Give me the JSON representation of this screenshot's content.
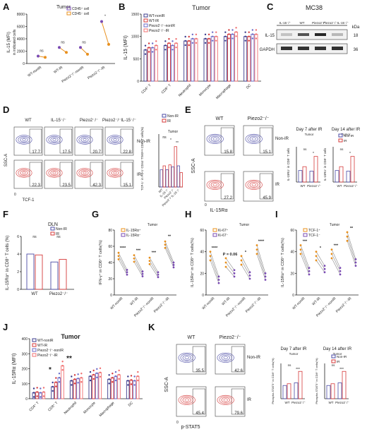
{
  "panels": {
    "A": {
      "label": "A",
      "title": "Tumor",
      "ylabel": "IL-15 (MFI)",
      "ylabel2": "in indicated cells",
      "legend": [
        "CD45⁺ cell",
        "CD45⁻ cell"
      ],
      "categories": [
        "WT-nonIR",
        "WT-IR",
        "Piezo2⁻/⁻-nonIR",
        "Piezo2⁻/⁻-IR"
      ],
      "sig": [
        "ns",
        "ns",
        "ns",
        "*"
      ],
      "yticks": [
        "0",
        "2000",
        "4000",
        "6000",
        "8000"
      ]
    },
    "B": {
      "label": "B",
      "title": "Tumor",
      "ylabel": "IL-15 (MFI)",
      "legend": [
        "WT-nonIR",
        "WT-IR",
        "Piezo2⁻/⁻-nonIR",
        "Piezo2⁻/⁻-IR"
      ],
      "categories": [
        "CD4⁺ T",
        "CD8⁺ T",
        "Neutrophil",
        "Monocyte",
        "Macrophage",
        "DC"
      ],
      "yticks": [
        "0",
        "500",
        "1000",
        "1500"
      ]
    },
    "C": {
      "label": "C",
      "title": "MC38",
      "lanes": [
        "IL-15⁻/⁻",
        "WT",
        "Piezo2⁻/⁻",
        "Piezo2⁻/⁻IL-15⁻/⁻"
      ],
      "bands": [
        "IL-15",
        "GAPDH"
      ],
      "kda_label": "kDa",
      "kda": [
        "18",
        "36"
      ]
    },
    "D": {
      "label": "D",
      "cols": [
        "WT",
        "IL-15⁻/⁻",
        "Piezo2⁻/⁻",
        "Piezo2⁻/⁻IL-15⁻/⁻"
      ],
      "rows": [
        "Non-IR",
        "IR"
      ],
      "nonir_vals": [
        "17.7",
        "17.5",
        "20.7",
        "22.8"
      ],
      "ir_vals": [
        "22.3",
        "23.5",
        "42.3",
        "15.1"
      ],
      "xlabel": "TCF-1",
      "ylabel": "SSC-A",
      "zero": "0",
      "legend": [
        "Non-IR",
        "IR"
      ],
      "bar_title": "Tumor",
      "bar_ylabel": "TCF-1⁺ in PD-1⁺CD44⁺TIM3ⁿᵉᵍ CD8⁺ T cells(%)",
      "bar_cats": [
        "WT",
        "IL-15⁻/⁻",
        "Piezo2⁻/⁻",
        "Piezo2⁻/⁻IL-15⁻/⁻"
      ],
      "sig": [
        "ns",
        "*",
        "**"
      ]
    },
    "E": {
      "label": "E",
      "cols": [
        "WT",
        "Piezo2⁻/⁻"
      ],
      "rows": [
        "Non-IR",
        "IR"
      ],
      "vals": [
        "15.8",
        "15.1",
        "27.2",
        "45.9"
      ],
      "xlabel": "IL-15Rα",
      "ylabel": "SSC-A",
      "zero": "0",
      "sub1": "Day 7 after IR",
      "sub2": "Day 14 after IR",
      "bar_title": "Tumor",
      "legend": [
        "Non-IR",
        "IR"
      ],
      "bar_ylabel1": "IL-15Rα⁺ in CD8⁺ T cells",
      "bar_ylabel2": "IL-15Rα⁺ in CD8⁺ T cells",
      "bar_cats": [
        "WT",
        "Piezo2⁻/⁻"
      ],
      "sig": [
        "ns",
        "*"
      ]
    },
    "F": {
      "label": "F",
      "title": "DLN",
      "ylabel": "IL-15Rα⁺ in CD8⁺ T cells (%)",
      "legend": [
        "Non-IR",
        "IR"
      ],
      "categories": [
        "WT",
        "Piezo2⁻/⁻"
      ],
      "sig": [
        "ns",
        "ns"
      ],
      "yticks": [
        "0",
        "2",
        "4",
        "6"
      ]
    },
    "G": {
      "label": "G",
      "title": "Tumor",
      "ylabel": "IFN-γ⁺ in CD8⁺ T cells(%)",
      "legend": [
        "IL-15Rα⁺",
        "IL-15Rα⁻"
      ],
      "categories": [
        "WT-nonIR",
        "WT-IR",
        "Piezo2⁻/⁻-nonIR",
        "Piezo2⁻/⁻-IR"
      ],
      "sig": [
        "****",
        "***",
        "***",
        "**"
      ],
      "yticks": [
        "0",
        "20",
        "40",
        "60",
        "80"
      ]
    },
    "H": {
      "label": "H",
      "title": "Tumor",
      "ylabel": "IL-15Rα⁺ in CD8⁺ T cells(%)",
      "legend": [
        "Ki-67⁺",
        "Ki-67⁻"
      ],
      "categories": [
        "WT-nonIR",
        "WT-IR",
        "Piezo2⁻/⁻-nonIR",
        "Piezo2⁻/⁻-IR"
      ],
      "sig": [
        "****",
        "P = 0.06",
        "*",
        "****"
      ],
      "yticks": [
        "0",
        "20",
        "40",
        "60"
      ]
    },
    "I": {
      "label": "I",
      "title": "Tumor",
      "ylabel": "IL-15Rα⁺ in CD8⁺ T cells(%)",
      "legend": [
        "TCF-1⁺",
        "TCF-1⁻"
      ],
      "categories": [
        "WT-nonIR",
        "WT-IR",
        "Piezo2⁻/⁻-nonIR",
        "Piezo2⁻/⁻-IR"
      ],
      "sig": [
        "***",
        "*",
        "***",
        "**"
      ],
      "yticks": [
        "0",
        "20",
        "40",
        "60"
      ]
    },
    "J": {
      "label": "J",
      "title": "Tumor",
      "ylabel": "IL-15Rα (MFI)",
      "legend": [
        "WT-nonIR",
        "WT-IR",
        "Piezo2⁻/⁻-nonIR",
        "Piezo2⁻/⁻-IR"
      ],
      "categories": [
        "CD4⁺ T",
        "CD8⁺ T",
        "Neutrophil",
        "Monocyte",
        "Macrophage",
        "DC"
      ],
      "sig": [
        "*",
        "**"
      ],
      "yticks": [
        "0",
        "100",
        "200",
        "300",
        "400"
      ]
    },
    "K": {
      "label": "K",
      "cols": [
        "WT",
        "Piezo2⁻/⁻"
      ],
      "rows": [
        "Non-IR",
        "IR"
      ],
      "vals": [
        "35.5",
        "42.6",
        "45.4",
        "79.6"
      ],
      "xlabel": "p-STAT5",
      "ylabel": "SSC-A",
      "zero": "0",
      "sub1": "Day 7 after IR",
      "sub2": "Day 14 after IR",
      "bar_title": "Tumor",
      "legend": [
        "Non-IR",
        "IR"
      ],
      "bar_ylabel1": "Phospho-STAT5⁺ in CD8⁺ T cells(%)",
      "bar_ylabel2": "Phospho-STAT5⁺ in CD8⁺ T cells(%)",
      "bar_cats": [
        "WT",
        "Piezo2⁻/⁻"
      ],
      "sig": [
        "ns",
        "***"
      ]
    }
  },
  "colors": {
    "nonir": "#4b4ba6",
    "ir": "#d63a3a",
    "orange": "#e8901e",
    "purple": "#7a4bb3",
    "gray": "#555555"
  },
  "chart_data": [
    {
      "panel": "A",
      "type": "scatter",
      "series": [
        {
          "name": "CD45⁺ cell",
          "values": [
            1200,
            2600,
            2600,
            6800
          ]
        },
        {
          "name": "CD45⁻ cell",
          "values": [
            1000,
            1800,
            1500,
            3100
          ]
        }
      ],
      "categories": [
        "WT-nonIR",
        "WT-IR",
        "Piezo2⁻/⁻-nonIR",
        "Piezo2⁻/⁻-IR"
      ],
      "ylim": [
        0,
        8000
      ]
    },
    {
      "panel": "B",
      "type": "bar",
      "categories": [
        "CD4⁺ T",
        "CD8⁺ T",
        "Neutrophil",
        "Monocyte",
        "Macrophage",
        "DC"
      ],
      "series": [
        {
          "name": "WT-nonIR",
          "values": [
            700,
            800,
            900,
            950,
            1000,
            1000
          ]
        },
        {
          "name": "WT-IR",
          "values": [
            750,
            850,
            900,
            950,
            1050,
            1000
          ]
        },
        {
          "name": "Piezo2⁻/⁻-nonIR",
          "values": [
            750,
            800,
            950,
            1000,
            1050,
            1050
          ]
        },
        {
          "name": "Piezo2⁻/⁻-IR",
          "values": [
            800,
            850,
            950,
            1000,
            1100,
            1050
          ]
        }
      ],
      "ylim": [
        0,
        1500
      ]
    },
    {
      "panel": "F",
      "type": "bar",
      "categories": [
        "WT",
        "Piezo2⁻/⁻"
      ],
      "series": [
        {
          "name": "Non-IR",
          "values": [
            4.0,
            3.1
          ]
        },
        {
          "name": "IR",
          "values": [
            3.9,
            3.4
          ]
        }
      ],
      "ylim": [
        0,
        6
      ]
    },
    {
      "panel": "G",
      "type": "line",
      "categories": [
        "WT-nonIR",
        "WT-IR",
        "Piezo2⁻/⁻-nonIR",
        "Piezo2⁻/⁻-IR"
      ],
      "series": [
        {
          "name": "IL-15Rα⁺",
          "values": [
            48,
            45,
            42,
            62
          ]
        },
        {
          "name": "IL-15Rα⁻",
          "values": [
            28,
            26,
            25,
            37
          ]
        }
      ],
      "ylim": [
        0,
        80
      ]
    },
    {
      "panel": "H",
      "type": "line",
      "categories": [
        "WT-nonIR",
        "WT-IR",
        "Piezo2⁻/⁻-nonIR",
        "Piezo2⁻/⁻-IR"
      ],
      "series": [
        {
          "name": "Ki-67⁺",
          "values": [
            36,
            30,
            32,
            42
          ]
        },
        {
          "name": "Ki-67⁻",
          "values": [
            14,
            20,
            18,
            17
          ]
        }
      ],
      "ylim": [
        0,
        60
      ]
    },
    {
      "panel": "I",
      "type": "line",
      "categories": [
        "WT-nonIR",
        "WT-IR",
        "Piezo2⁻/⁻-nonIR",
        "Piezo2⁻/⁻-IR"
      ],
      "series": [
        {
          "name": "TCF-1⁺",
          "values": [
            42,
            36,
            38,
            54
          ]
        },
        {
          "name": "TCF-1⁻",
          "values": [
            22,
            24,
            22,
            30
          ]
        }
      ],
      "ylim": [
        0,
        60
      ]
    },
    {
      "panel": "J",
      "type": "bar",
      "categories": [
        "CD4⁺ T",
        "CD8⁺ T",
        "Neutrophil",
        "Monocyte",
        "Macrophage",
        "DC"
      ],
      "series": [
        {
          "name": "WT-nonIR",
          "values": [
            40,
            80,
            120,
            150,
            130,
            120
          ]
        },
        {
          "name": "WT-IR",
          "values": [
            45,
            110,
            130,
            160,
            140,
            125
          ]
        },
        {
          "name": "Piezo2⁻/⁻-nonIR",
          "values": [
            40,
            140,
            135,
            170,
            150,
            120
          ]
        },
        {
          "name": "Piezo2⁻/⁻-IR",
          "values": [
            45,
            220,
            140,
            175,
            160,
            150
          ]
        }
      ],
      "ylim": [
        0,
        400
      ]
    }
  ]
}
